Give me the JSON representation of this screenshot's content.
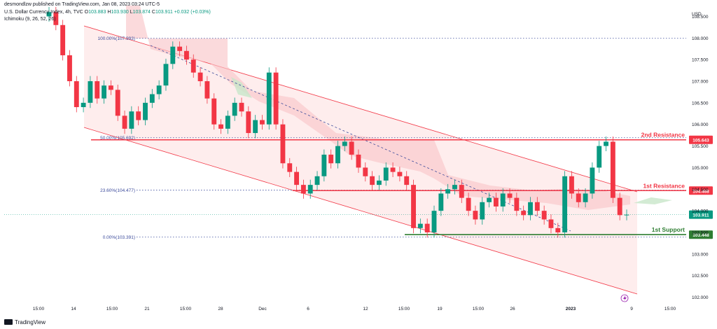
{
  "header": {
    "published": "desmondlzw published on TradingView.com, Jan 08, 2023 03:24 UTC-5",
    "symbol": "U.S. Dollar Currency Index, 4h, TVC",
    "open_label": "O",
    "open": "103.883",
    "high_label": "H",
    "high": "103.930",
    "low_label": "L",
    "low": "103.874",
    "close_label": "C",
    "close": "103.911",
    "change": "+0.032 (+0.03%)",
    "indicator": "Ichimoku (9, 26, 52, 26)"
  },
  "footer": {
    "brand": "TradingView"
  },
  "colors": {
    "up": "#089981",
    "down": "#f23645",
    "channel": "#f23645",
    "channel_fill": "#fde5e6",
    "resistance": "#f23645",
    "support": "#2e7d32",
    "fib": "#3b4a9b",
    "cloud_bear": "#f9c6c9",
    "cloud_bull": "#c8e6c9"
  },
  "chart_data": {
    "type": "candlestick",
    "price_axis_label": "USD",
    "ylim": [
      101.75,
      108.75
    ],
    "y_ticks": [
      "108.500",
      "108.000",
      "107.500",
      "107.000",
      "106.500",
      "106.000",
      "105.500",
      "105.000",
      "104.500",
      "104.000",
      "103.500",
      "103.000",
      "102.500",
      "102.000"
    ],
    "x_ticks": [
      "15:00",
      "14",
      "15:00",
      "21",
      "15:00",
      "28",
      "Dec",
      "6",
      "12",
      "15:00",
      "19",
      "15:00",
      "26",
      "2023",
      "9",
      "15:00"
    ],
    "fib_levels": [
      {
        "label": "100.00%(107.993)",
        "value": 107.993
      },
      {
        "label": "50.00%(105.692)",
        "value": 105.692
      },
      {
        "label": "23.60%(104.477)",
        "value": 104.477
      },
      {
        "label": "0.00%(103.391)",
        "value": 103.391
      }
    ],
    "levels": [
      {
        "name": "2nd Resistance",
        "value": "105.643",
        "kind": "resistance"
      },
      {
        "name": "1st Resistance",
        "value": "104.468",
        "kind": "resistance"
      },
      {
        "name": "1st Support",
        "value": "103.448",
        "kind": "support"
      }
    ],
    "last_price": "103.911",
    "closes": [
      108.6,
      108.3,
      107.6,
      107.0,
      106.4,
      106.5,
      107.0,
      106.6,
      106.9,
      106.8,
      106.2,
      105.9,
      106.3,
      106.1,
      106.5,
      106.7,
      106.9,
      107.4,
      107.8,
      107.7,
      107.5,
      107.2,
      107.0,
      106.6,
      106.0,
      105.9,
      106.2,
      106.5,
      106.3,
      105.8,
      106.1,
      106.0,
      107.2,
      106.0,
      105.1,
      104.9,
      104.6,
      104.4,
      104.6,
      104.8,
      105.3,
      105.1,
      105.5,
      105.6,
      105.3,
      105.0,
      104.8,
      104.6,
      104.7,
      105.0,
      104.9,
      104.8,
      104.6,
      103.6,
      103.7,
      103.5,
      104.0,
      104.4,
      104.5,
      104.6,
      104.3,
      104.0,
      103.8,
      104.2,
      104.3,
      104.1,
      104.4,
      104.3,
      104.0,
      103.9,
      104.2,
      104.0,
      103.8,
      103.6,
      103.5,
      104.8,
      104.4,
      104.2,
      104.4,
      105.0,
      105.5,
      105.6,
      104.3,
      103.9,
      103.911
    ]
  }
}
